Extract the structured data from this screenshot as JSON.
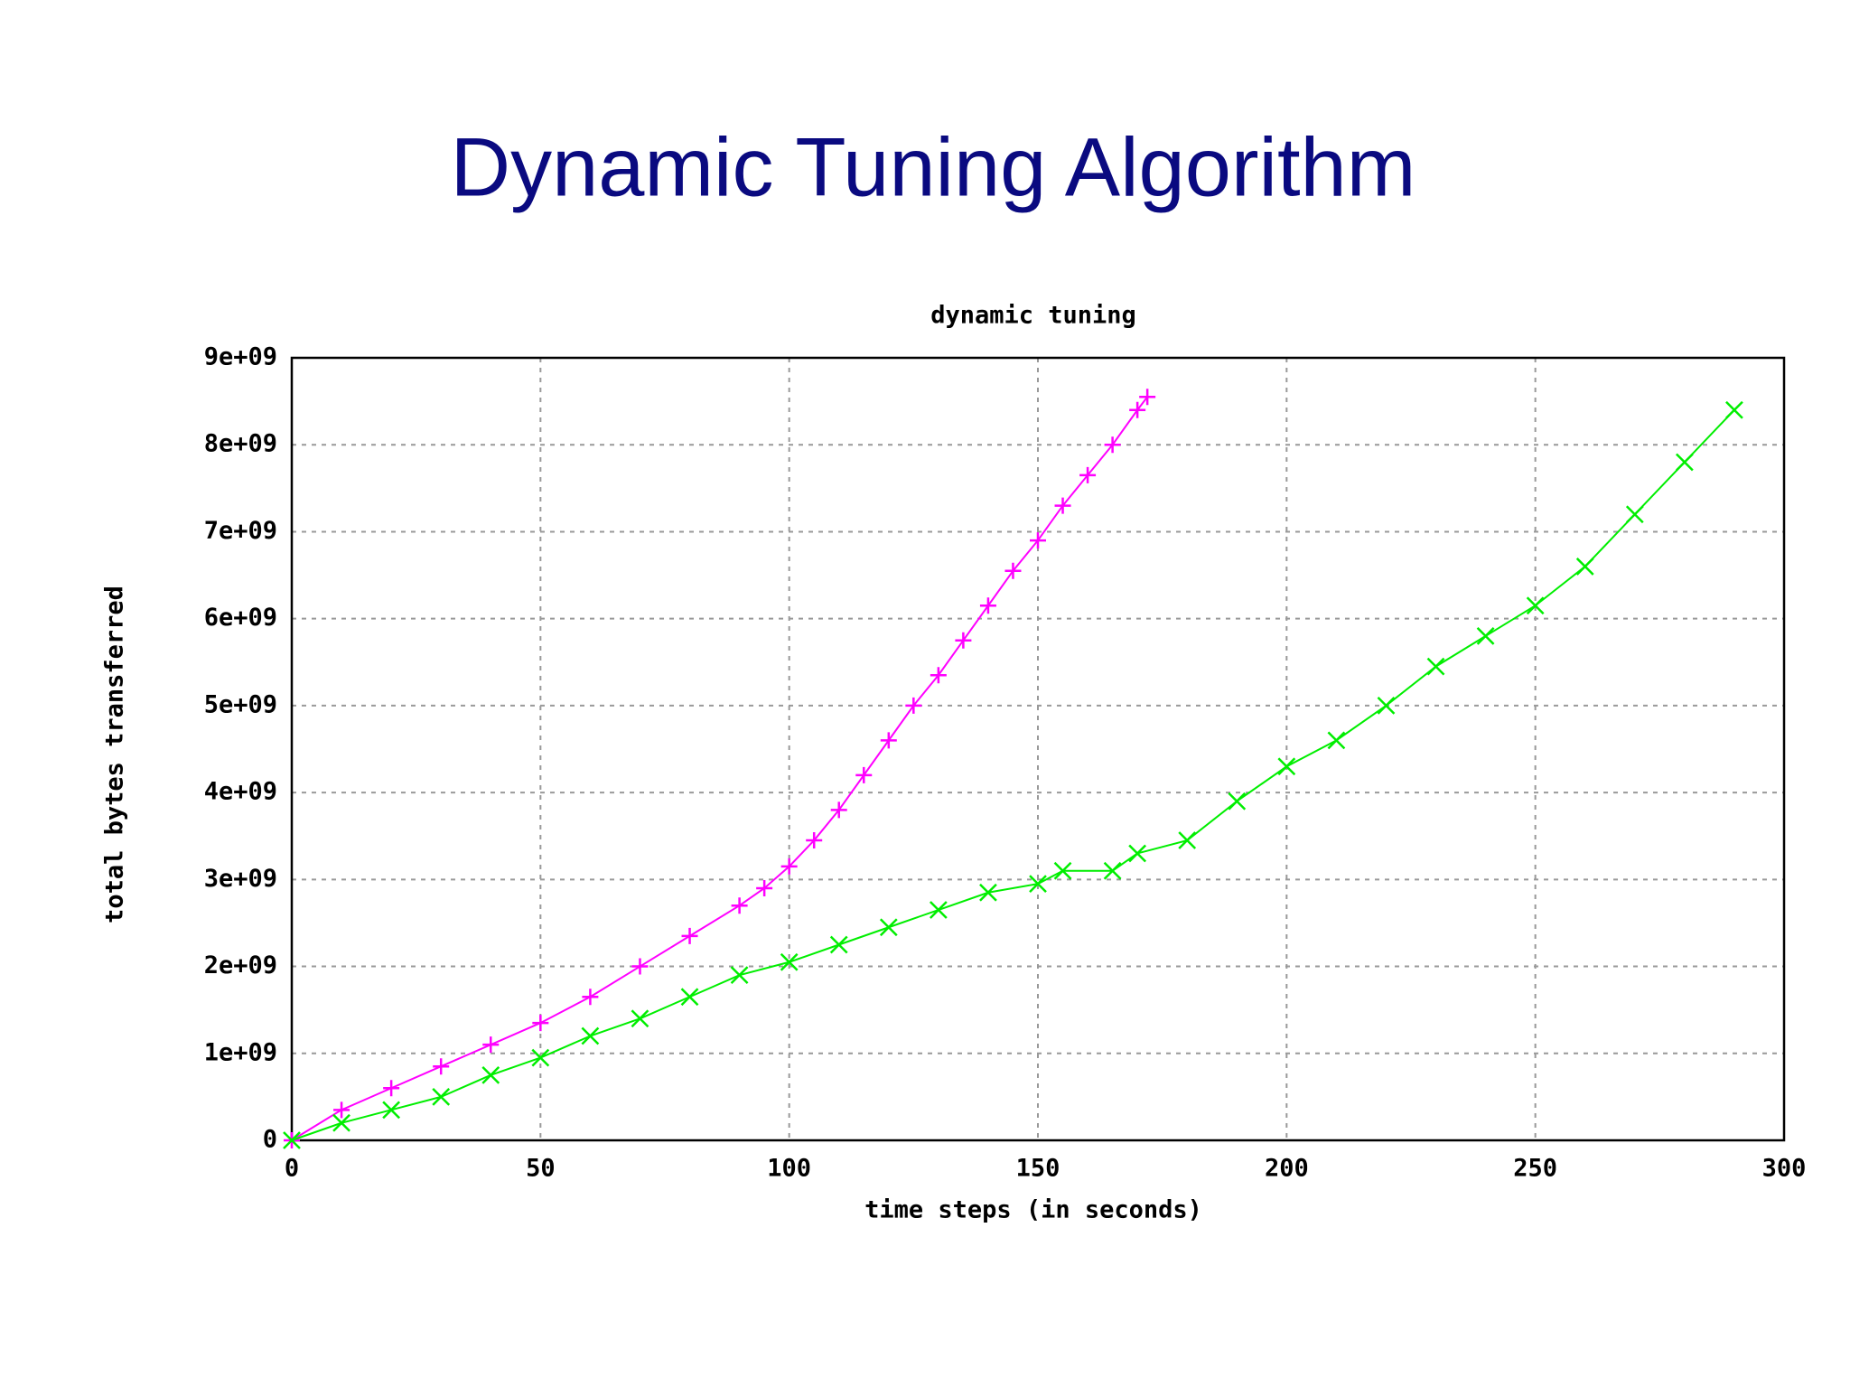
{
  "header": {
    "title": "Dynamic Tuning Algorithm"
  },
  "chart_data": {
    "type": "line",
    "title": "dynamic tuning",
    "xlabel": "time steps (in seconds)",
    "ylabel": "total bytes transferred",
    "xlim": [
      0,
      300
    ],
    "ylim": [
      0,
      9000000000
    ],
    "xticks": [
      0,
      50,
      100,
      150,
      200,
      250,
      300
    ],
    "yticks": [
      0,
      {
        "value": 1000000000,
        "label": "1e+09"
      },
      {
        "value": 2000000000,
        "label": "2e+09"
      },
      {
        "value": 3000000000,
        "label": "3e+09"
      },
      {
        "value": 4000000000,
        "label": "4e+09"
      },
      {
        "value": 5000000000,
        "label": "5e+09"
      },
      {
        "value": 6000000000,
        "label": "6e+09"
      },
      {
        "value": 7000000000,
        "label": "7e+09"
      },
      {
        "value": 8000000000,
        "label": "8e+09"
      },
      {
        "value": 9000000000,
        "label": "9e+09"
      }
    ],
    "grid": true,
    "series": [
      {
        "color": "#ff00ff",
        "marker": "plus",
        "x": [
          0,
          10,
          20,
          30,
          40,
          50,
          60,
          70,
          80,
          90,
          95,
          100,
          105,
          110,
          115,
          120,
          125,
          130,
          135,
          140,
          145,
          150,
          155,
          160,
          165,
          170,
          172
        ],
        "values": [
          0,
          350000000,
          600000000,
          850000000,
          1100000000,
          1350000000,
          1650000000,
          2000000000,
          2350000000,
          2700000000,
          2900000000,
          3150000000,
          3450000000,
          3800000000,
          4200000000,
          4600000000,
          5000000000,
          5350000000,
          5750000000,
          6150000000,
          6550000000,
          6900000000,
          7300000000,
          7650000000,
          8000000000,
          8400000000,
          8550000000
        ]
      },
      {
        "color": "#00ee00",
        "marker": "cross",
        "x": [
          0,
          10,
          20,
          30,
          40,
          50,
          60,
          70,
          80,
          90,
          100,
          110,
          120,
          130,
          140,
          150,
          155,
          165,
          170,
          180,
          190,
          200,
          210,
          220,
          230,
          240,
          250,
          260,
          270,
          280,
          290
        ],
        "values": [
          0,
          200000000,
          350000000,
          500000000,
          750000000,
          950000000,
          1200000000,
          1400000000,
          1650000000,
          1900000000,
          2050000000,
          2250000000,
          2450000000,
          2650000000,
          2850000000,
          2950000000,
          3100000000,
          3100000000,
          3300000000,
          3450000000,
          3900000000,
          4300000000,
          4600000000,
          5000000000,
          5450000000,
          5800000000,
          6150000000,
          6600000000,
          7200000000,
          7800000000,
          8400000000
        ]
      }
    ]
  }
}
